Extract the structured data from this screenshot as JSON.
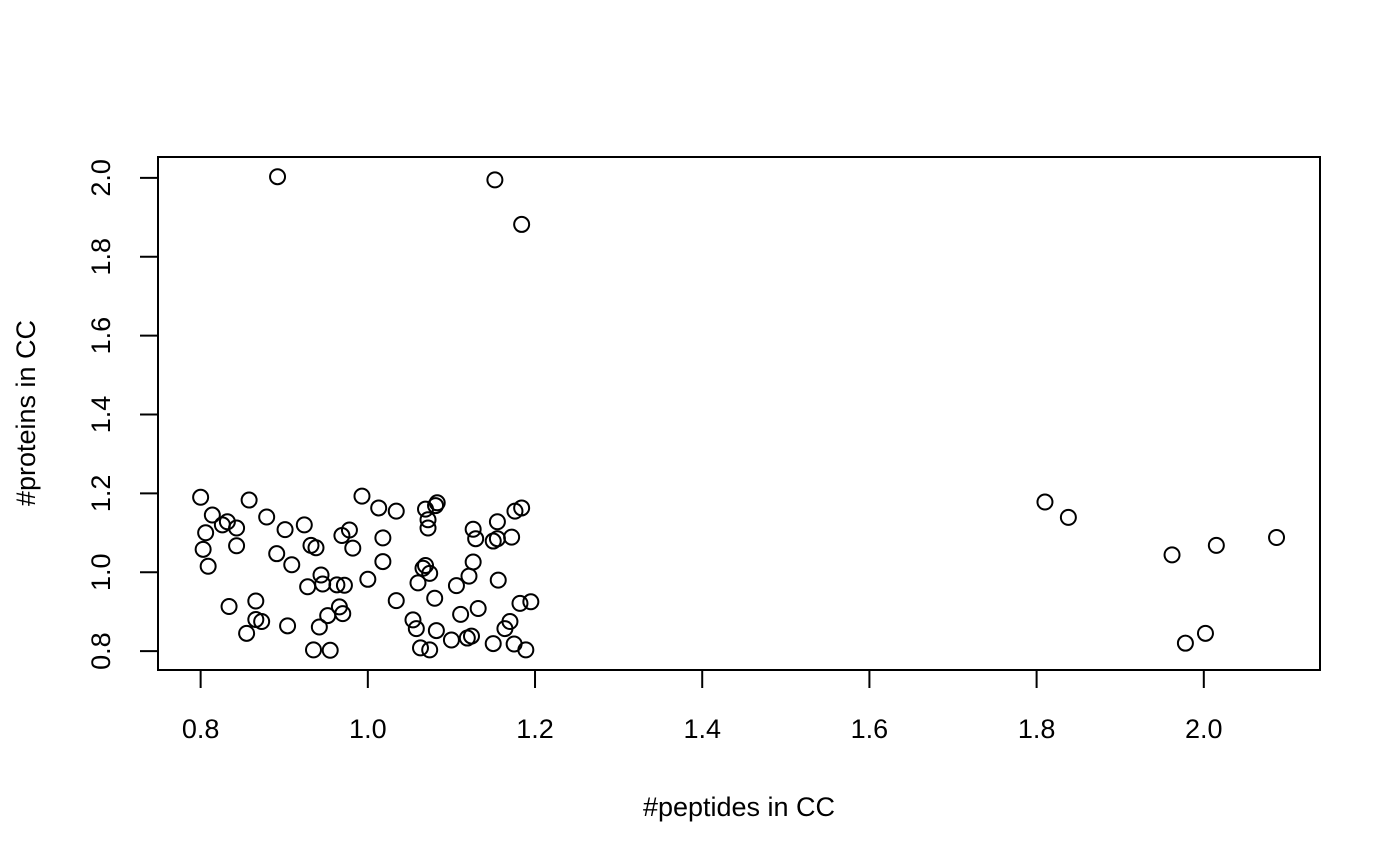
{
  "chart_data": {
    "type": "scatter",
    "title": "",
    "xlabel": "#peptides in CC",
    "ylabel": "#proteins in CC",
    "xlim": [
      0.749,
      2.139
    ],
    "ylim": [
      0.752,
      2.053
    ],
    "xticks": [
      "0.8",
      "1.0",
      "1.2",
      "1.4",
      "1.6",
      "1.8",
      "2.0"
    ],
    "yticks": [
      "0.8",
      "1.0",
      "1.2",
      "1.4",
      "1.6",
      "1.8",
      "2.0"
    ],
    "grid": false,
    "legend": "none",
    "marker": "open-circle",
    "marker_color": "#000000",
    "series": [
      {
        "points": [
          [
            0.892,
            2.003
          ],
          [
            1.152,
            1.995
          ],
          [
            1.184,
            1.882
          ],
          [
            0.8,
            1.19
          ],
          [
            0.806,
            1.1
          ],
          [
            0.803,
            1.058
          ],
          [
            0.809,
            1.015
          ],
          [
            0.814,
            1.145
          ],
          [
            0.826,
            1.12
          ],
          [
            0.832,
            1.128
          ],
          [
            0.843,
            1.112
          ],
          [
            0.843,
            1.067
          ],
          [
            0.834,
            0.913
          ],
          [
            0.855,
            0.845
          ],
          [
            0.858,
            1.183
          ],
          [
            0.866,
            0.927
          ],
          [
            0.866,
            0.88
          ],
          [
            0.873,
            0.875
          ],
          [
            0.879,
            1.14
          ],
          [
            0.891,
            1.047
          ],
          [
            0.901,
            1.108
          ],
          [
            0.904,
            0.864
          ],
          [
            0.909,
            1.019
          ],
          [
            0.924,
            1.12
          ],
          [
            0.928,
            0.963
          ],
          [
            0.932,
            1.068
          ],
          [
            0.935,
            0.803
          ],
          [
            0.938,
            1.062
          ],
          [
            0.942,
            0.861
          ],
          [
            0.944,
            0.993
          ],
          [
            0.946,
            0.97
          ],
          [
            0.952,
            0.89
          ],
          [
            0.955,
            0.802
          ],
          [
            0.963,
            0.968
          ],
          [
            0.966,
            0.912
          ],
          [
            0.969,
            1.093
          ],
          [
            0.97,
            0.895
          ],
          [
            0.972,
            0.967
          ],
          [
            0.978,
            1.107
          ],
          [
            0.982,
            1.061
          ],
          [
            0.993,
            1.193
          ],
          [
            1.0,
            0.982
          ],
          [
            1.013,
            1.163
          ],
          [
            1.018,
            1.087
          ],
          [
            1.018,
            1.027
          ],
          [
            1.034,
            1.155
          ],
          [
            1.034,
            0.928
          ],
          [
            1.054,
            0.879
          ],
          [
            1.058,
            0.857
          ],
          [
            1.06,
            0.973
          ],
          [
            1.063,
            0.808
          ],
          [
            1.066,
            1.01
          ],
          [
            1.069,
            1.017
          ],
          [
            1.069,
            1.16
          ],
          [
            1.072,
            1.133
          ],
          [
            1.072,
            1.112
          ],
          [
            1.074,
            0.803
          ],
          [
            1.074,
            0.997
          ],
          [
            1.08,
            0.934
          ],
          [
            1.081,
            1.169
          ],
          [
            1.082,
            0.852
          ],
          [
            1.083,
            1.176
          ],
          [
            1.1,
            0.828
          ],
          [
            1.106,
            0.966
          ],
          [
            1.111,
            0.893
          ],
          [
            1.119,
            0.833
          ],
          [
            1.121,
            0.99
          ],
          [
            1.124,
            0.838
          ],
          [
            1.126,
            1.109
          ],
          [
            1.126,
            1.026
          ],
          [
            1.129,
            1.085
          ],
          [
            1.132,
            0.908
          ],
          [
            1.15,
            1.079
          ],
          [
            1.15,
            0.819
          ],
          [
            1.155,
            1.128
          ],
          [
            1.155,
            1.085
          ],
          [
            1.156,
            0.98
          ],
          [
            1.164,
            0.857
          ],
          [
            1.17,
            0.875
          ],
          [
            1.172,
            1.089
          ],
          [
            1.175,
            0.818
          ],
          [
            1.176,
            1.155
          ],
          [
            1.182,
            0.921
          ],
          [
            1.184,
            1.163
          ],
          [
            1.189,
            0.803
          ],
          [
            1.195,
            0.925
          ],
          [
            1.81,
            1.178
          ],
          [
            1.838,
            1.139
          ],
          [
            1.962,
            1.044
          ],
          [
            1.978,
            0.82
          ],
          [
            2.002,
            0.845
          ],
          [
            2.015,
            1.068
          ],
          [
            2.087,
            1.088
          ]
        ]
      }
    ]
  }
}
